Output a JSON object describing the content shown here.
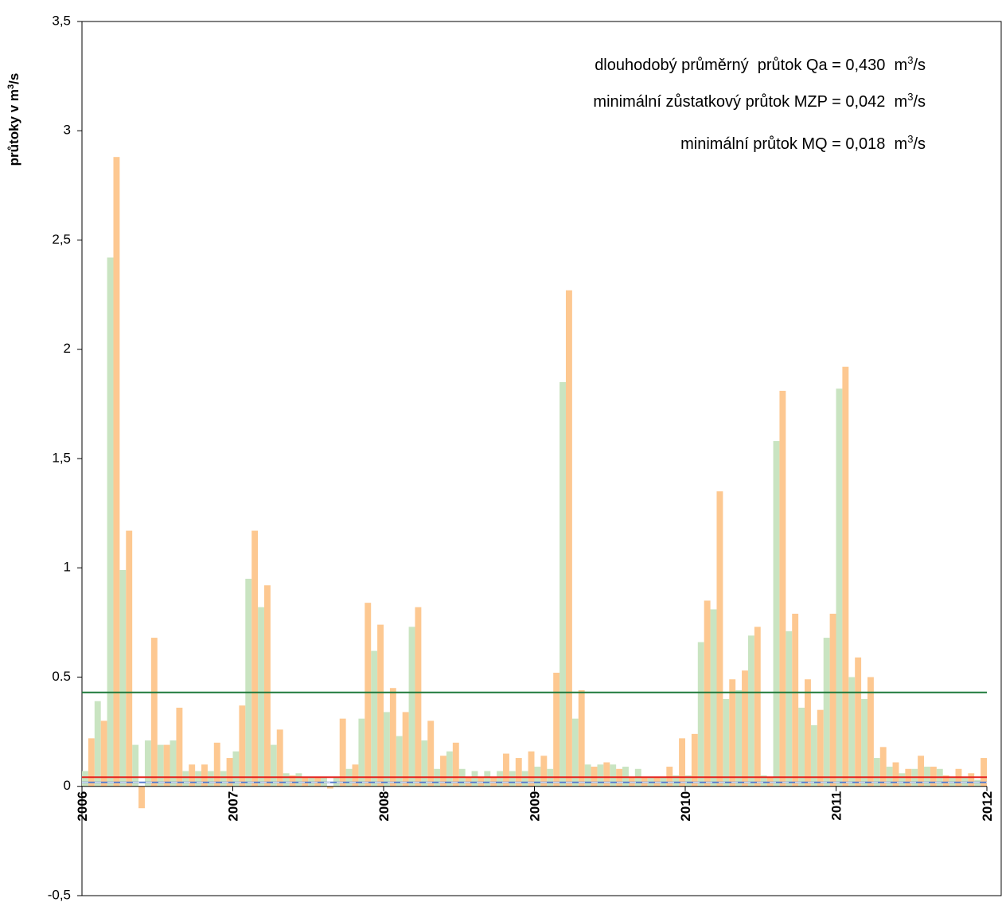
{
  "chart_data": {
    "type": "bar",
    "y_label": [
      "průtoky v m",
      "3",
      "/s"
    ],
    "xlim": [
      2006,
      2012
    ],
    "xticks": [
      2006,
      2007,
      2008,
      2009,
      2010,
      2011,
      2012
    ],
    "ylim": [
      -0.5,
      3.5
    ],
    "yticks": [
      {
        "value": -0.5,
        "label": "-0,5"
      },
      0,
      {
        "value": 0.5,
        "label": "0.5"
      },
      1,
      {
        "value": 1.5,
        "label": "1,5"
      },
      2,
      {
        "value": 2.5,
        "label": "2,5"
      },
      3,
      {
        "value": 3.5,
        "label": "3,5"
      }
    ],
    "series": [
      {
        "color": "#c9e4c1",
        "values": [
          0.07,
          0.39,
          2.42,
          0.99,
          0.19,
          0.21,
          0.19,
          0.21,
          0.07,
          0.07,
          0.07,
          0.07,
          0.16,
          0.95,
          0.82,
          0.19,
          0.06,
          0.06,
          0.04,
          0.04,
          0.04,
          0.08,
          0.31,
          0.62,
          0.34,
          0.23,
          0.73,
          0.21,
          0.08,
          0.16,
          0.08,
          0.07,
          0.07,
          0.07,
          0.07,
          0.07,
          0.09,
          0.08,
          1.85,
          0.31,
          0.1,
          0.1,
          0.1,
          0.09,
          0.08,
          0.04,
          0.04,
          0.05,
          0.05,
          0.66,
          0.81,
          0.4,
          0.44,
          0.69,
          0.05,
          1.58,
          0.71,
          0.36,
          0.28,
          0.68,
          1.82,
          0.5,
          0.4,
          0.13,
          0.09,
          0.06,
          0.08,
          0.09,
          0.08,
          0.04,
          0.04,
          0.03
        ]
      },
      {
        "color": "#fdc891",
        "values": [
          0.22,
          0.3,
          2.88,
          1.17,
          -0.1,
          0.68,
          0.19,
          0.36,
          0.1,
          0.1,
          0.2,
          0.13,
          0.37,
          1.17,
          0.92,
          0.26,
          0.05,
          0.04,
          0.04,
          -0.01,
          0.31,
          0.1,
          0.84,
          0.74,
          0.45,
          0.34,
          0.82,
          0.3,
          0.14,
          0.2,
          0.04,
          0.04,
          0.04,
          0.15,
          0.13,
          0.16,
          0.14,
          0.52,
          2.27,
          0.44,
          0.09,
          0.11,
          0.08,
          0.04,
          0.04,
          0.04,
          0.09,
          0.22,
          0.24,
          0.85,
          1.35,
          0.49,
          0.53,
          0.73,
          0.04,
          1.81,
          0.79,
          0.49,
          0.35,
          0.79,
          1.92,
          0.59,
          0.5,
          0.18,
          0.11,
          0.08,
          0.14,
          0.09,
          0.05,
          0.08,
          0.06,
          0.13
        ]
      }
    ],
    "reference_lines": [
      {
        "value": 0.43,
        "color": "#1f7a3c",
        "label": [
          "dlouhodobý průměrný  průtok Qa = 0,430  m",
          "3",
          "/s"
        ]
      },
      {
        "value": 0.042,
        "color": "#e42320",
        "label": [
          "minimální zůstatkový průtok MZP = 0,042  m",
          "3",
          "/s"
        ]
      },
      {
        "value": 0.018,
        "color": "#5a7fcf",
        "dashed": true,
        "label": [
          "minimální průtok MQ = 0,018  m",
          "3",
          "/s"
        ]
      }
    ],
    "annotation_color": "#e42320"
  }
}
